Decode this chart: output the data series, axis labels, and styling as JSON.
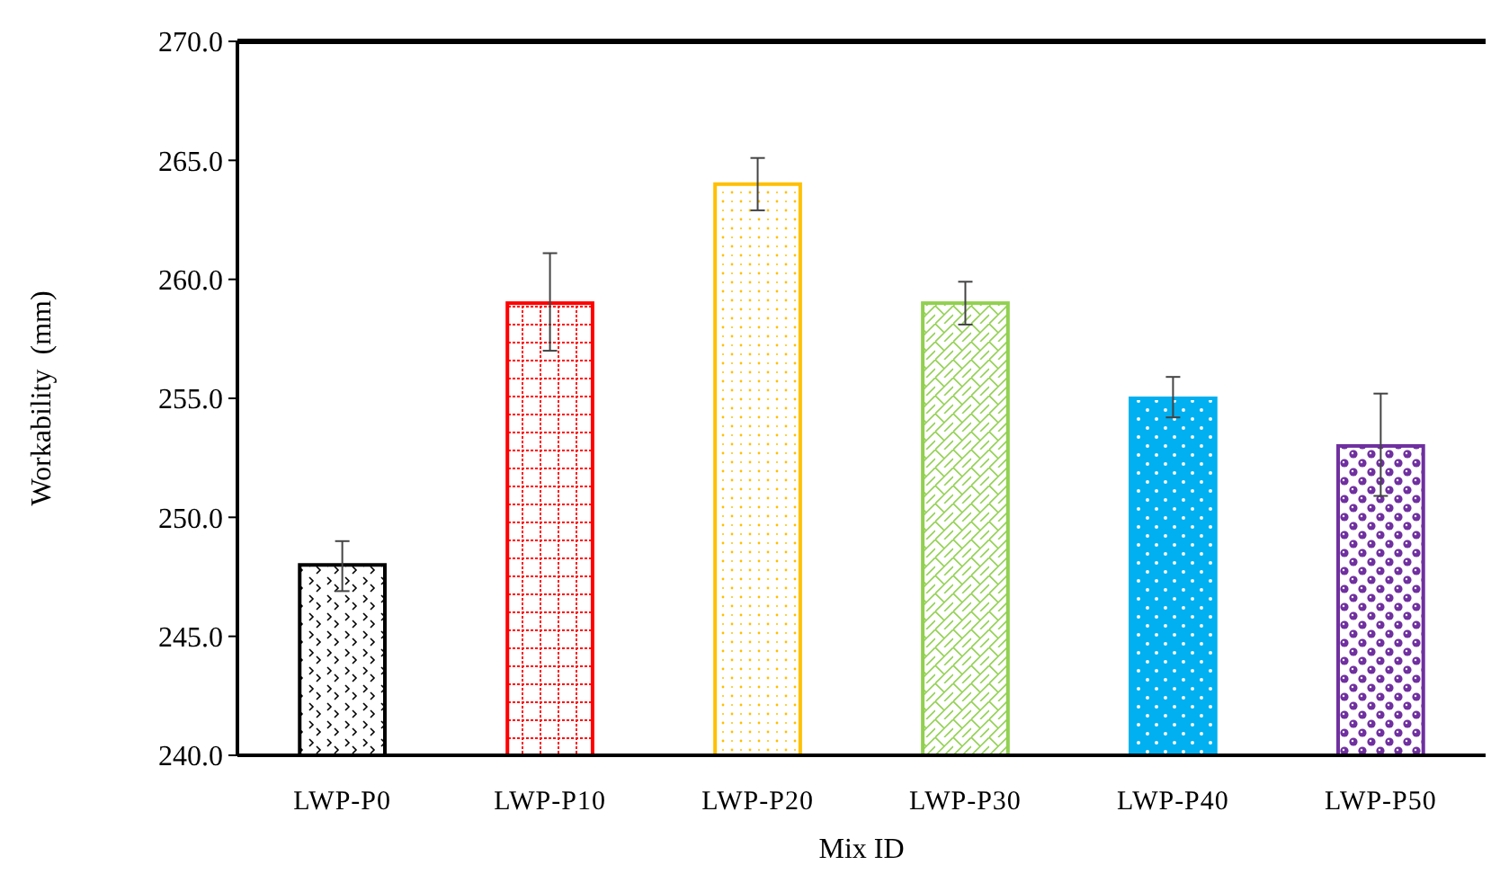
{
  "chart_data": {
    "type": "bar",
    "xlabel": "Mix ID",
    "ylabel": "Workability  (mm)",
    "categories": [
      "LWP-P0",
      "LWP-P10",
      "LWP-P20",
      "LWP-P30",
      "LWP-P40",
      "LWP-P50"
    ],
    "values": [
      248,
      259,
      264,
      259,
      255,
      253
    ],
    "colors": [
      "#000000",
      "#ff0000",
      "#ffc000",
      "#92d050",
      "#00b0f0",
      "#7030a0"
    ],
    "errors": [
      [
        246.9,
        249.0
      ],
      [
        257.0,
        261.1
      ],
      [
        262.9,
        265.1
      ],
      [
        258.1,
        259.9
      ],
      [
        254.2,
        255.9
      ],
      [
        250.9,
        255.2
      ]
    ],
    "ylim": [
      240,
      270
    ],
    "yticks": [
      {
        "value": 240,
        "label": "240.0"
      },
      {
        "value": 245,
        "label": "245.0"
      },
      {
        "value": 250,
        "label": "250.0"
      },
      {
        "value": 255,
        "label": "255.0"
      },
      {
        "value": 260,
        "label": "260.0"
      },
      {
        "value": 265,
        "label": "265.0"
      },
      {
        "value": 270,
        "label": "270.0"
      }
    ],
    "grid": false
  }
}
